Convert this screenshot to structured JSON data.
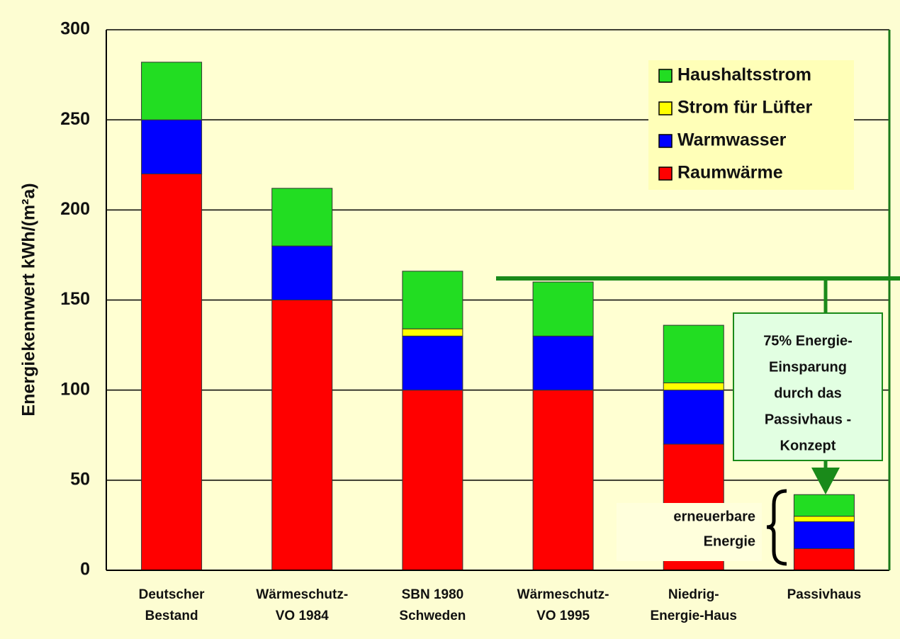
{
  "chart_data": {
    "type": "stacked-bar",
    "y_label": "Energiekennwert  kWh/(m²a)",
    "categories": [
      [
        "Deutscher",
        "Bestand"
      ],
      [
        "Wärmeschutz-",
        "VO 1984"
      ],
      [
        "SBN 1980",
        "Schweden"
      ],
      [
        "Wärmeschutz-",
        "VO 1995"
      ],
      [
        "Niedrig-",
        "Energie-Haus"
      ],
      [
        "Passivhaus"
      ]
    ],
    "series": [
      {
        "name": "Raumwärme",
        "color": "#ff0000",
        "values": [
          220,
          150,
          100,
          100,
          70,
          12
        ]
      },
      {
        "name": "Warmwasser",
        "color": "#0000ff",
        "values": [
          30,
          30,
          30,
          30,
          30,
          15
        ]
      },
      {
        "name": "Strom für Lüfter",
        "color": "#ffff00",
        "values": [
          0,
          0,
          4,
          0,
          4,
          3
        ]
      },
      {
        "name": "Haushaltsstrom",
        "color": "#22dd22",
        "values": [
          32,
          32,
          32,
          30,
          32,
          12
        ]
      }
    ],
    "ylim": [
      0,
      300
    ],
    "yticks": [
      0,
      50,
      100,
      150,
      200,
      250,
      300
    ],
    "grid": true,
    "legend": "upper right",
    "annotations": {
      "savings": [
        "75% Energie-",
        "Einsparung",
        "durch das",
        "Passivhaus -",
        "Konzept"
      ],
      "renewable": [
        "erneuerbare",
        "Energie"
      ]
    }
  }
}
